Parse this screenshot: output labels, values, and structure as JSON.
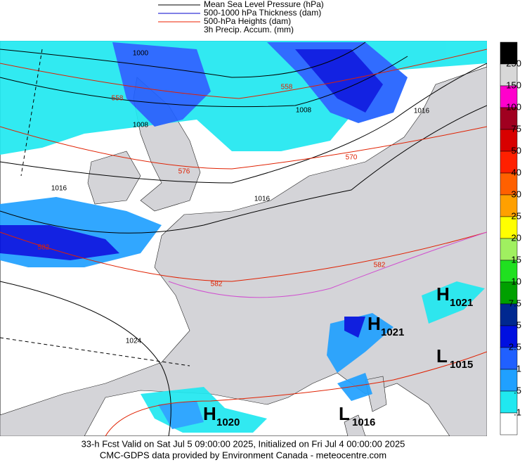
{
  "legend": [
    {
      "label": "Mean Sea Level Pressure (hPa)",
      "color": "#000000"
    },
    {
      "label": "500-1000 hPa Thickness (dam)",
      "color": "#0000cc"
    },
    {
      "label": "500-hPa Heights (dam)",
      "color": "#ee2200"
    },
    {
      "label": "3h Precip. Accum. (mm)"
    }
  ],
  "colorbar": {
    "labels": [
      "250",
      "150",
      "100",
      "75",
      "50",
      "40",
      "30",
      "25",
      "20",
      "15",
      "10",
      "7.5",
      "5",
      "2.5",
      "1",
      ".5",
      ".1"
    ],
    "colors": [
      "#000000",
      "#d8d8d8",
      "#ff00cc",
      "#a00020",
      "#d80000",
      "#ff2000",
      "#ff6000",
      "#ffa000",
      "#ffff00",
      "#a0f060",
      "#20e020",
      "#00a000",
      "#002890",
      "#0010e0",
      "#2060ff",
      "#20a0ff",
      "#20e8f0",
      "#ffffff"
    ]
  },
  "contour_labels": [
    "1000",
    "558",
    "1008",
    "576",
    "1016",
    "1016",
    "1016",
    "1008",
    "558",
    "570",
    "582",
    "582",
    "582",
    "1024"
  ],
  "centers": [
    {
      "letter": "H",
      "value": "1021"
    },
    {
      "letter": "H",
      "value": "1021"
    },
    {
      "letter": "L",
      "value": "1015"
    },
    {
      "letter": "H",
      "value": "1020"
    },
    {
      "letter": "L",
      "value": "1016"
    }
  ],
  "footer": [
    "33-h Fcst Valid on Sat Jul  5 09:00:00 2025, Initialized on Fri Jul  4 00:00:00 2025",
    "CMC-GDPS data provided by Environment Canada - meteocentre.com"
  ]
}
